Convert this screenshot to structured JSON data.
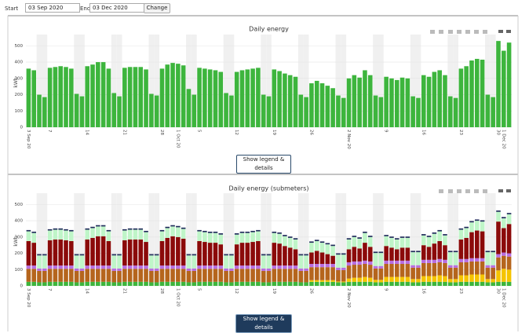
{
  "controls": {
    "start_label": "Start",
    "start_value": "03 Sep 2020",
    "end_label": "End",
    "end_value": "03 Dec 2020",
    "button": "Change"
  },
  "legend_buttons": [
    "Show legend & details",
    "Show legend & details"
  ],
  "chart_data": [
    {
      "type": "bar",
      "title": "Daily energy",
      "y_label": "kWh",
      "color": "#3db53d",
      "ylim": [
        0,
        550
      ],
      "yticks": [
        0,
        100,
        200,
        300,
        400,
        500
      ],
      "grid": true,
      "categories": [
        "3 Sep 20",
        null,
        null,
        null,
        "7",
        null,
        null,
        null,
        null,
        null,
        null,
        "14",
        null,
        null,
        null,
        null,
        null,
        null,
        "21",
        null,
        null,
        null,
        null,
        null,
        null,
        "28",
        null,
        null,
        "1 Oct 20",
        null,
        null,
        null,
        "5",
        null,
        null,
        null,
        null,
        null,
        null,
        "12",
        null,
        null,
        null,
        null,
        null,
        null,
        "19",
        null,
        null,
        null,
        null,
        null,
        null,
        "26",
        null,
        null,
        null,
        null,
        null,
        null,
        "2 Nov 20",
        null,
        null,
        null,
        null,
        null,
        null,
        "9",
        null,
        null,
        null,
        null,
        null,
        null,
        "16",
        null,
        null,
        null,
        null,
        null,
        null,
        "23",
        null,
        null,
        null,
        null,
        null,
        null,
        "30",
        "1 Dec 20",
        null
      ],
      "values": [
        360,
        350,
        200,
        185,
        365,
        370,
        375,
        370,
        360,
        205,
        190,
        375,
        385,
        400,
        400,
        360,
        210,
        190,
        365,
        370,
        370,
        370,
        355,
        205,
        195,
        360,
        385,
        395,
        390,
        380,
        235,
        200,
        365,
        360,
        355,
        350,
        340,
        210,
        195,
        340,
        350,
        355,
        360,
        365,
        200,
        190,
        355,
        345,
        330,
        320,
        310,
        200,
        185,
        270,
        285,
        270,
        255,
        240,
        195,
        180,
        300,
        320,
        305,
        350,
        320,
        195,
        185,
        310,
        300,
        290,
        305,
        300,
        190,
        180,
        320,
        310,
        340,
        350,
        320,
        190,
        180,
        360,
        375,
        410,
        420,
        415,
        200,
        185,
        530,
        470,
        520
      ]
    },
    {
      "type": "stacked_bar",
      "title": "Daily energy (submeters)",
      "y_label": "kWh",
      "ylim": [
        0,
        550
      ],
      "yticks": [
        0,
        100,
        200,
        300,
        400,
        500
      ],
      "grid": true,
      "categories": [
        "3 Sep 20",
        null,
        null,
        null,
        "7",
        null,
        null,
        null,
        null,
        null,
        null,
        "14",
        null,
        null,
        null,
        null,
        null,
        null,
        "21",
        null,
        null,
        null,
        null,
        null,
        null,
        "28",
        null,
        null,
        "1 Oct 20",
        null,
        null,
        null,
        "5",
        null,
        null,
        null,
        null,
        null,
        null,
        "12",
        null,
        null,
        null,
        null,
        null,
        null,
        "19",
        null,
        null,
        null,
        null,
        null,
        null,
        "26",
        null,
        null,
        null,
        null,
        null,
        null,
        "2 Nov 20",
        null,
        null,
        null,
        null,
        null,
        null,
        "9",
        null,
        null,
        null,
        null,
        null,
        null,
        "16",
        null,
        null,
        null,
        null,
        null,
        null,
        "23",
        null,
        null,
        null,
        null,
        null,
        null,
        "30",
        "1 Dec 20",
        null
      ],
      "series": [
        {
          "color": "#3db53d",
          "values": [
            25,
            25,
            22,
            22,
            25,
            25,
            25,
            25,
            25,
            22,
            22,
            25,
            25,
            25,
            25,
            25,
            22,
            22,
            25,
            25,
            25,
            25,
            25,
            22,
            22,
            25,
            25,
            25,
            25,
            25,
            22,
            22,
            25,
            25,
            25,
            25,
            25,
            22,
            22,
            25,
            25,
            25,
            25,
            25,
            22,
            22,
            25,
            25,
            25,
            25,
            25,
            22,
            22,
            25,
            25,
            25,
            25,
            25,
            22,
            22,
            25,
            25,
            25,
            25,
            25,
            22,
            22,
            25,
            25,
            25,
            25,
            25,
            22,
            22,
            25,
            25,
            25,
            25,
            25,
            22,
            22,
            25,
            25,
            25,
            25,
            25,
            22,
            22,
            25,
            25,
            25
          ]
        },
        {
          "color": "#f5c400",
          "values": [
            0,
            0,
            0,
            0,
            0,
            0,
            0,
            0,
            0,
            0,
            0,
            0,
            0,
            0,
            0,
            0,
            0,
            0,
            0,
            0,
            0,
            0,
            0,
            0,
            0,
            0,
            0,
            0,
            0,
            0,
            0,
            0,
            0,
            0,
            0,
            0,
            0,
            0,
            0,
            0,
            0,
            0,
            0,
            0,
            0,
            0,
            0,
            0,
            0,
            0,
            0,
            0,
            0,
            10,
            10,
            10,
            10,
            10,
            5,
            5,
            20,
            25,
            25,
            30,
            25,
            15,
            15,
            30,
            30,
            30,
            30,
            30,
            20,
            20,
            35,
            35,
            35,
            40,
            35,
            20,
            20,
            40,
            40,
            45,
            45,
            45,
            20,
            20,
            70,
            80,
            75
          ]
        },
        {
          "color": "#b5651d",
          "values": [
            80,
            80,
            70,
            70,
            80,
            80,
            80,
            80,
            80,
            70,
            70,
            80,
            80,
            80,
            80,
            80,
            70,
            70,
            80,
            80,
            80,
            80,
            80,
            70,
            70,
            80,
            80,
            80,
            80,
            80,
            70,
            70,
            80,
            80,
            80,
            80,
            80,
            70,
            70,
            80,
            80,
            80,
            80,
            80,
            70,
            70,
            80,
            80,
            80,
            80,
            80,
            70,
            70,
            80,
            80,
            80,
            80,
            80,
            70,
            70,
            80,
            80,
            80,
            80,
            80,
            70,
            70,
            80,
            80,
            80,
            80,
            80,
            70,
            70,
            80,
            80,
            80,
            80,
            80,
            70,
            70,
            80,
            80,
            80,
            80,
            80,
            70,
            70,
            80,
            80,
            80
          ]
        },
        {
          "color": "#b86ee0",
          "values": [
            20,
            20,
            15,
            15,
            20,
            20,
            20,
            20,
            20,
            15,
            15,
            20,
            20,
            20,
            20,
            20,
            15,
            15,
            20,
            20,
            20,
            20,
            20,
            15,
            15,
            20,
            20,
            20,
            20,
            20,
            15,
            15,
            20,
            20,
            20,
            20,
            20,
            15,
            15,
            20,
            20,
            20,
            20,
            20,
            15,
            15,
            20,
            20,
            20,
            20,
            20,
            15,
            15,
            20,
            20,
            20,
            20,
            20,
            15,
            15,
            20,
            20,
            20,
            20,
            20,
            15,
            15,
            20,
            20,
            20,
            20,
            20,
            15,
            15,
            20,
            20,
            20,
            20,
            20,
            15,
            15,
            20,
            20,
            20,
            20,
            20,
            15,
            15,
            20,
            20,
            20
          ]
        },
        {
          "color": "#8b0a0a",
          "values": [
            150,
            140,
            0,
            0,
            155,
            160,
            160,
            155,
            150,
            0,
            0,
            160,
            170,
            180,
            180,
            150,
            0,
            0,
            155,
            160,
            160,
            160,
            145,
            0,
            0,
            150,
            170,
            180,
            175,
            165,
            0,
            0,
            150,
            145,
            140,
            140,
            130,
            0,
            0,
            130,
            140,
            140,
            145,
            150,
            0,
            0,
            140,
            135,
            120,
            110,
            100,
            0,
            0,
            70,
            80,
            70,
            60,
            50,
            0,
            0,
            80,
            90,
            80,
            110,
            90,
            0,
            0,
            90,
            80,
            70,
            80,
            80,
            0,
            0,
            90,
            80,
            100,
            110,
            90,
            0,
            0,
            120,
            130,
            160,
            170,
            165,
            0,
            0,
            200,
            150,
            180
          ]
        },
        {
          "color": "#bff5c8",
          "values": [
            60,
            60,
            80,
            80,
            60,
            60,
            60,
            60,
            60,
            80,
            80,
            60,
            60,
            60,
            60,
            60,
            80,
            80,
            60,
            60,
            60,
            60,
            60,
            80,
            80,
            60,
            60,
            60,
            60,
            60,
            80,
            80,
            60,
            60,
            60,
            60,
            60,
            80,
            80,
            60,
            60,
            60,
            60,
            60,
            80,
            80,
            60,
            60,
            60,
            60,
            60,
            80,
            80,
            60,
            60,
            60,
            60,
            60,
            80,
            80,
            60,
            60,
            60,
            60,
            60,
            80,
            80,
            60,
            60,
            60,
            60,
            60,
            80,
            80,
            60,
            60,
            60,
            60,
            60,
            80,
            80,
            60,
            60,
            60,
            60,
            60,
            80,
            80,
            60,
            60,
            60
          ]
        },
        {
          "color": "#1f2a5a",
          "values": [
            8,
            8,
            8,
            8,
            8,
            8,
            8,
            8,
            8,
            8,
            8,
            8,
            8,
            8,
            8,
            8,
            8,
            8,
            8,
            8,
            8,
            8,
            8,
            8,
            8,
            8,
            8,
            8,
            8,
            8,
            8,
            8,
            8,
            8,
            8,
            8,
            8,
            8,
            8,
            8,
            8,
            8,
            8,
            8,
            8,
            8,
            8,
            8,
            8,
            8,
            8,
            8,
            8,
            8,
            8,
            8,
            8,
            8,
            8,
            8,
            8,
            8,
            8,
            8,
            8,
            8,
            8,
            8,
            8,
            8,
            8,
            8,
            8,
            8,
            8,
            8,
            8,
            8,
            8,
            8,
            8,
            8,
            8,
            8,
            8,
            8,
            8,
            8,
            8,
            8,
            8
          ]
        }
      ]
    }
  ]
}
